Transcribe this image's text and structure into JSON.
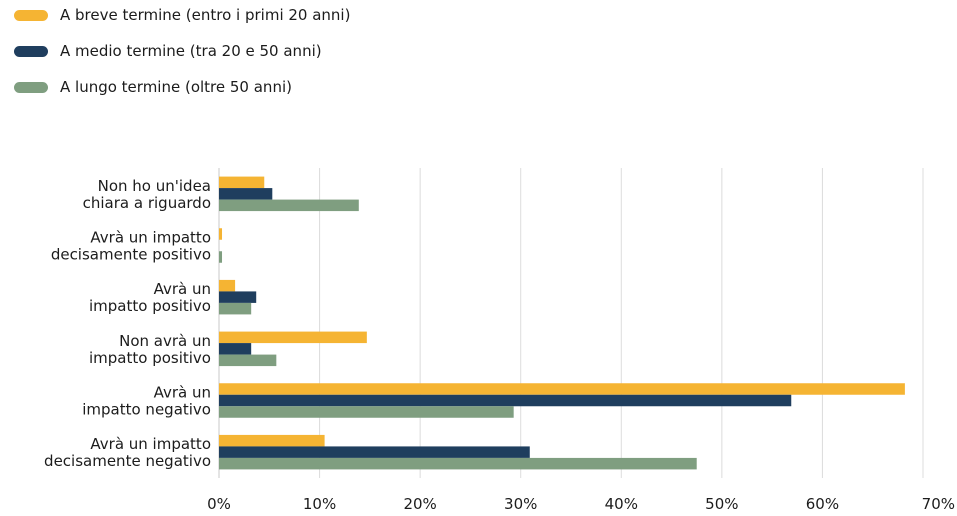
{
  "chart_data": {
    "type": "bar",
    "orientation": "horizontal",
    "categories": [
      [
        "Non ho un'idea",
        "chiara a riguardo"
      ],
      [
        "Avrà un impatto",
        "decisamente positivo"
      ],
      [
        "Avrà un",
        "impatto positivo"
      ],
      [
        "Non avrà un",
        "impatto positivo"
      ],
      [
        "Avrà un",
        "impatto negativo"
      ],
      [
        "Avrà un impatto",
        "decisamente negativo"
      ]
    ],
    "series": [
      {
        "name": "A breve termine (entro i primi 20 anni)",
        "color": "#F5B433",
        "values": [
          4.5,
          0.3,
          1.6,
          14.7,
          68.2,
          10.5
        ]
      },
      {
        "name": "A medio termine (tra 20 e 50 anni)",
        "color": "#1F3E5E",
        "values": [
          5.3,
          0.0,
          3.7,
          3.2,
          56.9,
          30.9
        ]
      },
      {
        "name": "A lungo termine (oltre 50 anni)",
        "color": "#7F9E80",
        "values": [
          13.9,
          0.3,
          3.2,
          5.7,
          29.3,
          47.5
        ]
      }
    ],
    "xlim": [
      0,
      70
    ],
    "xticks": [
      "0%",
      "10%",
      "20%",
      "30%",
      "40%",
      "50%",
      "60%",
      "70%"
    ],
    "xtick_values": [
      0,
      10,
      20,
      30,
      40,
      50,
      60,
      70
    ],
    "grid": true,
    "legend_position": "top-left",
    "title": "",
    "xlabel": "",
    "ylabel": ""
  }
}
